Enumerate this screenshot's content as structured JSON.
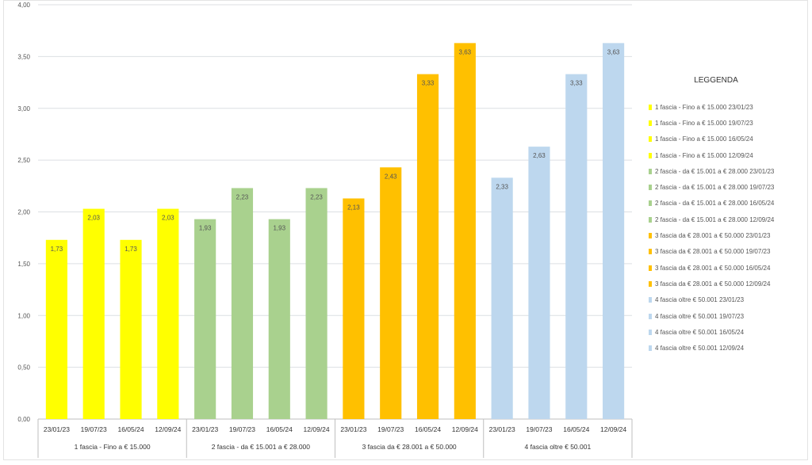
{
  "chart_data": {
    "type": "bar",
    "title": "",
    "xlabel": "",
    "ylabel": "",
    "ylim": [
      0,
      4
    ],
    "y_ticks": [
      "0,00",
      "0,50",
      "1,00",
      "1,50",
      "2,00",
      "2,50",
      "3,00",
      "3,50",
      "4,00"
    ],
    "grid": true,
    "legend_placement": "right",
    "legend_title": "LEGGENDA",
    "groups": [
      {
        "name": "1 fascia - Fino a € 15.000",
        "color": "#ffff00",
        "bars": [
          {
            "date": "23/01/23",
            "value": 1.73,
            "label": "1,73",
            "legend": "1 fascia - Fino a € 15.000 23/01/23"
          },
          {
            "date": "19/07/23",
            "value": 2.03,
            "label": "2,03",
            "legend": "1 fascia - Fino a € 15.000 19/07/23"
          },
          {
            "date": "16/05/24",
            "value": 1.73,
            "label": "1,73",
            "legend": "1 fascia - Fino a € 15.000 16/05/24"
          },
          {
            "date": "12/09/24",
            "value": 2.03,
            "label": "2,03",
            "legend": "1 fascia - Fino a € 15.000 12/09/24"
          }
        ]
      },
      {
        "name": "2 fascia - da € 15.001 a € 28.000",
        "color": "#a9d18e",
        "bars": [
          {
            "date": "23/01/23",
            "value": 1.93,
            "label": "1,93",
            "legend": "2 fascia - da € 15.001 a € 28.000 23/01/23"
          },
          {
            "date": "19/07/23",
            "value": 2.23,
            "label": "2,23",
            "legend": "2 fascia - da € 15.001 a € 28.000 19/07/23"
          },
          {
            "date": "16/05/24",
            "value": 1.93,
            "label": "1,93",
            "legend": "2 fascia - da € 15.001 a € 28.000 16/05/24"
          },
          {
            "date": "12/09/24",
            "value": 2.23,
            "label": "2,23",
            "legend": "2 fascia - da € 15.001 a € 28.000 12/09/24"
          }
        ]
      },
      {
        "name": "3 fascia da € 28.001 a € 50.000",
        "color": "#ffc000",
        "bars": [
          {
            "date": "23/01/23",
            "value": 2.13,
            "label": "2,13",
            "legend": "3 fascia da € 28.001 a € 50.000 23/01/23"
          },
          {
            "date": "19/07/23",
            "value": 2.43,
            "label": "2,43",
            "legend": "3 fascia da € 28.001 a € 50.000 19/07/23"
          },
          {
            "date": "16/05/24",
            "value": 3.33,
            "label": "3,33",
            "legend": "3 fascia da € 28.001 a € 50.000 16/05/24"
          },
          {
            "date": "12/09/24",
            "value": 3.63,
            "label": "3,63",
            "legend": "3 fascia da € 28.001 a € 50.000 12/09/24"
          }
        ]
      },
      {
        "name": "4 fascia oltre € 50.001",
        "color": "#bdd7ee",
        "bars": [
          {
            "date": "23/01/23",
            "value": 2.33,
            "label": "2,33",
            "legend": "4 fascia oltre € 50.001 23/01/23"
          },
          {
            "date": "19/07/23",
            "value": 2.63,
            "label": "2,63",
            "legend": "4 fascia oltre € 50.001 19/07/23"
          },
          {
            "date": "16/05/24",
            "value": 3.33,
            "label": "3,33",
            "legend": "4 fascia oltre € 50.001 16/05/24"
          },
          {
            "date": "12/09/24",
            "value": 3.63,
            "label": "3,63",
            "legend": "4 fascia oltre € 50.001 12/09/24"
          }
        ]
      }
    ]
  }
}
